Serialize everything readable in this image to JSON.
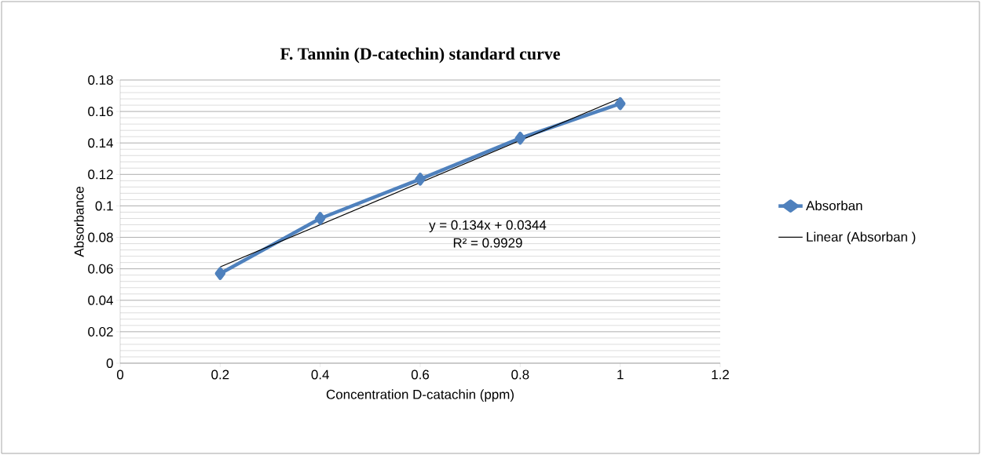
{
  "chart_data": {
    "type": "line",
    "title": "F. Tannin (D-catechin) standard curve",
    "xlabel": "Concentration D-catachin (ppm)",
    "ylabel": "Absorbance",
    "x": [
      0.2,
      0.4,
      0.6,
      0.8,
      1.0
    ],
    "series": [
      {
        "name": "Absorban",
        "color": "#4f81bd",
        "marker": "diamond",
        "values": [
          0.057,
          0.092,
          0.117,
          0.143,
          0.165
        ]
      },
      {
        "name": "Linear (Absorban )",
        "color": "#000000",
        "marker": "none",
        "x": [
          0.2,
          1.0
        ],
        "values": [
          0.0612,
          0.1684
        ]
      }
    ],
    "annotations": [
      "y = 0.134x + 0.0344",
      "R² = 0.9929"
    ],
    "xlim": [
      0,
      1.2
    ],
    "xticks": [
      0,
      0.2,
      0.4,
      0.6,
      0.8,
      1,
      1.2
    ],
    "ylim": [
      0,
      0.18
    ],
    "yticks": [
      0,
      0.02,
      0.04,
      0.06,
      0.08,
      0.1,
      0.12,
      0.14,
      0.16,
      0.18
    ],
    "grid": "y",
    "legend": "right"
  }
}
